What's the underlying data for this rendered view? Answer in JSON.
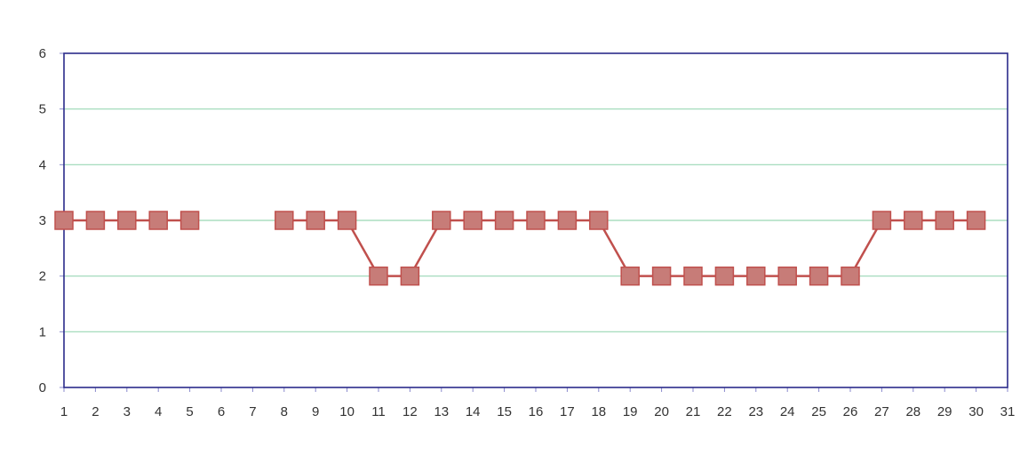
{
  "chart_data": {
    "type": "line",
    "title": "",
    "xlabel": "",
    "ylabel": "",
    "categories": [
      "1",
      "2",
      "3",
      "4",
      "5",
      "6",
      "7",
      "8",
      "9",
      "10",
      "11",
      "12",
      "13",
      "14",
      "15",
      "16",
      "17",
      "18",
      "19",
      "20",
      "21",
      "22",
      "23",
      "24",
      "25",
      "26",
      "27",
      "28",
      "29",
      "30",
      "31"
    ],
    "x": [
      1,
      2,
      3,
      4,
      5,
      6,
      7,
      8,
      9,
      10,
      11,
      12,
      13,
      14,
      15,
      16,
      17,
      18,
      19,
      20,
      21,
      22,
      23,
      24,
      25,
      26,
      27,
      28,
      29,
      30,
      31
    ],
    "xlim": [
      1,
      31
    ],
    "ylim": [
      0,
      6
    ],
    "yticks": [
      0,
      1,
      2,
      3,
      4,
      5,
      6
    ],
    "grid": true,
    "series": [
      {
        "values": [
          3,
          3,
          3,
          3,
          3,
          null,
          null,
          3,
          3,
          3,
          2,
          2,
          3,
          3,
          3,
          3,
          3,
          3,
          2,
          2,
          2,
          2,
          2,
          2,
          2,
          2,
          3,
          3,
          3,
          3,
          null
        ],
        "color": "#c0504d",
        "marker": "square",
        "marker_color": "#c77c78"
      }
    ],
    "colors": {
      "plot_border": "#2b2b8a",
      "grid": "#9ad7b5",
      "axis": "#8888cc"
    }
  }
}
